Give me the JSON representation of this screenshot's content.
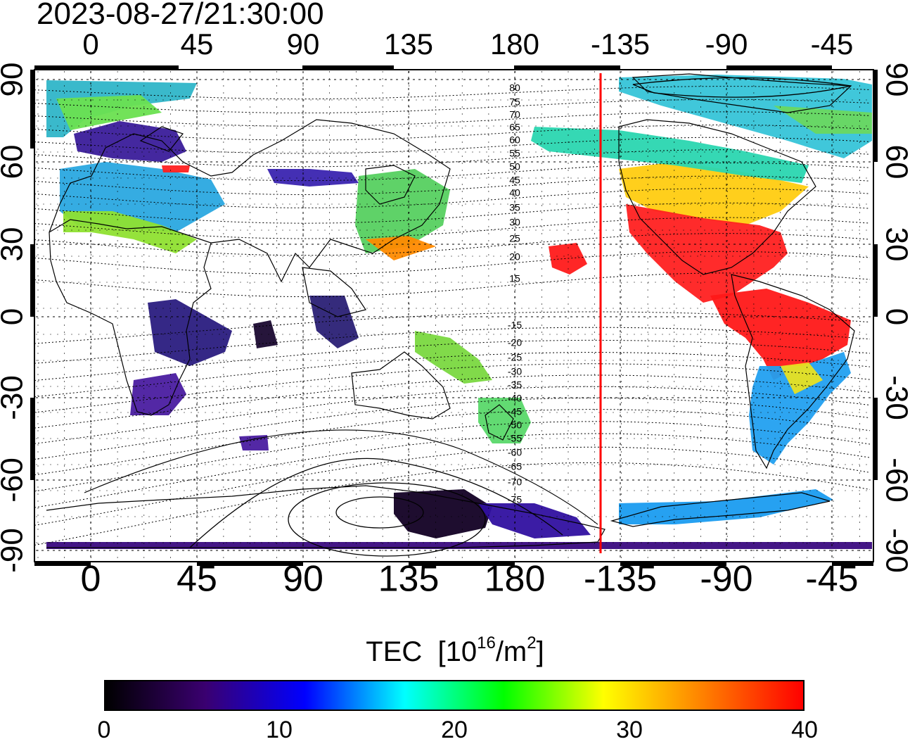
{
  "title": "2023-08-27/21:30:00",
  "map": {
    "top_axis_labels": [
      "0",
      "45",
      "90",
      "135",
      "180",
      "-135",
      "-90",
      "-45"
    ],
    "bottom_axis_labels": [
      "0",
      "45",
      "90",
      "135",
      "180",
      "-135",
      "-90",
      "-45"
    ],
    "left_axis_labels": [
      "90",
      "60",
      "30",
      "0",
      "-30",
      "-60",
      "-90"
    ],
    "right_axis_labels": [
      "90",
      "60",
      "30",
      "0",
      "-30",
      "-60",
      "-90"
    ],
    "magnetic_latitude_labels": [
      "80",
      "75",
      "70",
      "65",
      "60",
      "55",
      "50",
      "45",
      "40",
      "35",
      "30",
      "25",
      "20",
      "15",
      "-15",
      "-20",
      "-25",
      "-30",
      "-35",
      "-40",
      "-45",
      "-50",
      "-55",
      "-60",
      "-65",
      "-70",
      "-75"
    ],
    "terminator_color": "#ff0000",
    "coastline_color": "#000000"
  },
  "colorbar": {
    "title": "TEC",
    "unit_prefix": "[10",
    "unit_exp1": "16",
    "unit_mid": "/m",
    "unit_exp2": "2",
    "unit_suffix": "]",
    "tick_labels": [
      "0",
      "10",
      "20",
      "30",
      "40"
    ],
    "colormap": [
      "#000000",
      "#3a0070",
      "#0000ff",
      "#00ffff",
      "#00ff00",
      "#ffff00",
      "#ff8000",
      "#ff0000"
    ]
  }
}
